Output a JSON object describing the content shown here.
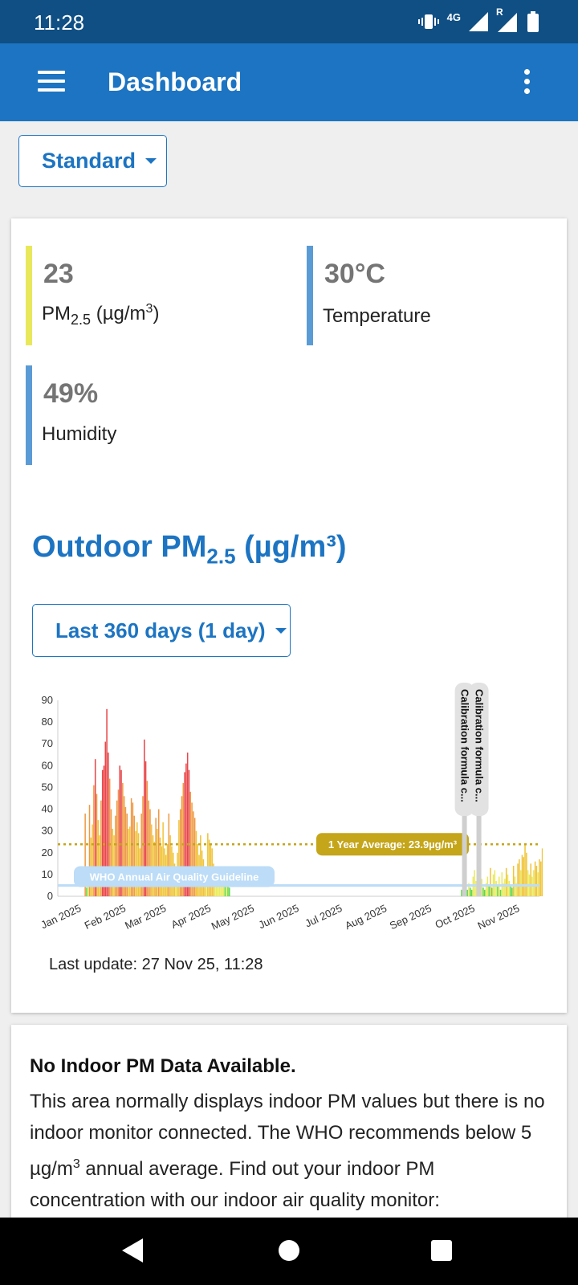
{
  "status_bar": {
    "time": "11:28",
    "network": "4G",
    "roaming": "R",
    "icons": [
      "vibrate-icon",
      "signal-icon",
      "roaming-signal-icon",
      "battery-icon"
    ]
  },
  "app_bar": {
    "title": "Dashboard",
    "icons": [
      "hamburger-menu-icon",
      "more-vert-icon"
    ]
  },
  "view_selector": {
    "label": "Standard"
  },
  "metrics": {
    "pm25": {
      "value": "23",
      "label_main": "PM",
      "label_sub": "2.5",
      "label_unit_pre": " (µg/m",
      "label_sup": "3",
      "label_unit_post": ")",
      "color": "#e8e85a"
    },
    "temperature": {
      "value": "30°C",
      "label": "Temperature",
      "color": "#5b9bd5"
    },
    "humidity": {
      "value": "49%",
      "label": "Humidity",
      "color": "#5b9bd5"
    }
  },
  "outdoor": {
    "title_main": "Outdoor PM",
    "title_sub": "2.5",
    "title_unit": " (µg/m³)",
    "range_label": "Last 360 days (1 day)",
    "last_update": "Last update: 27 Nov 25, 11:28"
  },
  "chart_data": {
    "type": "bar",
    "ylim": [
      0,
      90
    ],
    "yticks": [
      0,
      10,
      20,
      30,
      40,
      50,
      60,
      70,
      80,
      90
    ],
    "xticks": [
      "Jan 2025",
      "Feb 2025",
      "Mar 2025",
      "Apr 2025",
      "May 2025",
      "Jun 2025",
      "Jul 2025",
      "Aug 2025",
      "Sep 2025",
      "Oct 2025",
      "Nov 2025"
    ],
    "grid": false,
    "legend": "none",
    "series": [
      {
        "start_date": "2025-01-20",
        "values": [
          38,
          4,
          8,
          42,
          27,
          33,
          51,
          63,
          47,
          35,
          28,
          44,
          58,
          60,
          71,
          86,
          66,
          54,
          40,
          31,
          28,
          37,
          44,
          49,
          60,
          58,
          52,
          46,
          41,
          38,
          31,
          32,
          45,
          43,
          37,
          30,
          34,
          29,
          22,
          38,
          46,
          72,
          62,
          53,
          44,
          40,
          33,
          28,
          25,
          36,
          31,
          40,
          27,
          23,
          34,
          22,
          19,
          24,
          38,
          28,
          23,
          20,
          15,
          12,
          20,
          35,
          40,
          46,
          52,
          57,
          61,
          66,
          58,
          48,
          43,
          39,
          36,
          30,
          24,
          19,
          28,
          21,
          17,
          13,
          10,
          29,
          26,
          24,
          22,
          15,
          12,
          9,
          11,
          8,
          7,
          6,
          9,
          5,
          7,
          5,
          4
        ]
      },
      {
        "start_date": "2025-10-08",
        "values": [
          3,
          4,
          2,
          5,
          3,
          6,
          4,
          3,
          9,
          12,
          7,
          16,
          10,
          5,
          8,
          4,
          3,
          6,
          9,
          5,
          13,
          4,
          10,
          12,
          7,
          5,
          9,
          3,
          11,
          6,
          8,
          13,
          10,
          7,
          5,
          4,
          14,
          9,
          6,
          15,
          17,
          12,
          19,
          18,
          24,
          20,
          12,
          10,
          15,
          9,
          12,
          16,
          14,
          11,
          17,
          16,
          22,
          19,
          24
        ]
      }
    ],
    "color_scale": [
      {
        "max": 5,
        "color": "#5fd84a"
      },
      {
        "max": 12,
        "color": "#eaea5c"
      },
      {
        "max": 35,
        "color": "#f0c43a"
      },
      {
        "max": 55,
        "color": "#ef9a45"
      },
      {
        "max": 150,
        "color": "#e8474a"
      }
    ],
    "annotations": {
      "who_guideline": {
        "label": "WHO Annual Air Quality Guideline",
        "value": 5,
        "color": "#bcdcf7"
      },
      "average": {
        "label": "1 Year Average: 23.9µg/m³",
        "value": 23.9,
        "color": "#c5a51a"
      },
      "calibration": [
        {
          "label": "Calibration formula c...",
          "date": "2025-10-10"
        },
        {
          "label": "Calibration formula c...",
          "date": "2025-10-20"
        }
      ]
    }
  },
  "indoor": {
    "heading": "No Indoor PM Data Available.",
    "body_pre": "This area normally displays indoor PM values but there is no indoor monitor connected. The WHO recommends below 5 µg/m",
    "body_sup": "3",
    "body_post": " annual average. Find out your indoor PM concentration with our indoor air quality monitor:"
  },
  "nav_bar": {
    "icons": [
      "back-icon",
      "home-icon",
      "recents-icon"
    ]
  }
}
